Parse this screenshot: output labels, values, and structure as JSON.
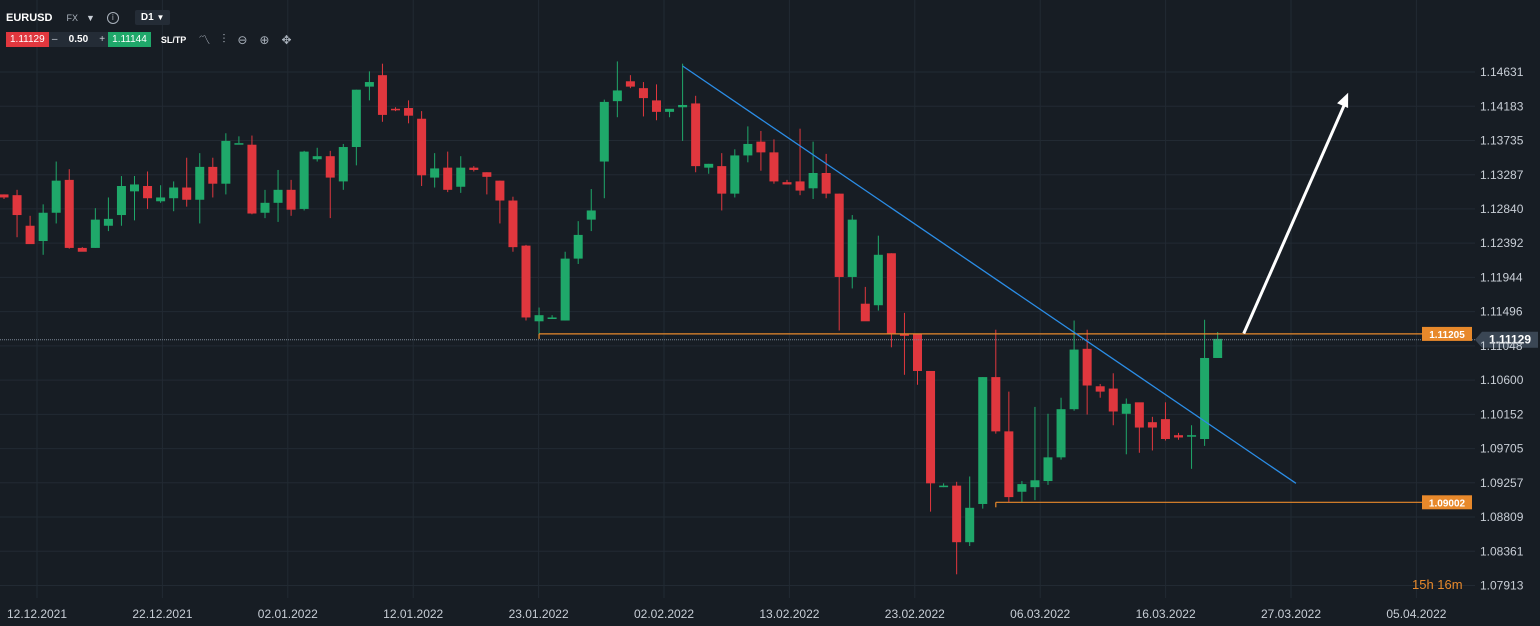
{
  "header": {
    "symbol": "EURUSD",
    "market": "FX",
    "timeframe": "D1",
    "sell_price": "1.11129",
    "quantity": "0.50",
    "buy_price": "1.11144",
    "sltp_label": "SL/TP",
    "minus_label": "–",
    "plus_label": "+",
    "tools": [
      "line-chart-icon",
      "candles-icon",
      "zoom-out-icon",
      "zoom-in-icon",
      "crosshair-icon"
    ]
  },
  "countdown": "15h 16m",
  "colors": {
    "background": "#171d24",
    "grid": "#222a33",
    "up": "#1fa86a",
    "down": "#e0373e",
    "trendline": "#2b8de6",
    "level": "#e8892b",
    "current_price_bg": "#3a4654",
    "arrow": "#ffffff"
  },
  "chart_data": {
    "type": "candlestick",
    "symbol": "EURUSD",
    "timeframe": "D1",
    "ylim": [
      1.0775,
      1.1505
    ],
    "y_ticks": [
      "1.14631",
      "1.14183",
      "1.13735",
      "1.13287",
      "1.12840",
      "1.12392",
      "1.11944",
      "1.11496",
      "1.11048",
      "1.10600",
      "1.10152",
      "1.09705",
      "1.09257",
      "1.08809",
      "1.08361",
      "1.07913"
    ],
    "x_ticks": [
      "12.12.2021",
      "22.12.2021",
      "02.01.2022",
      "12.01.2022",
      "23.01.2022",
      "02.02.2022",
      "13.02.2022",
      "23.02.2022",
      "06.03.2022",
      "16.03.2022",
      "27.03.2022",
      "05.04.2022"
    ],
    "current_price": "1.11129",
    "current_price_value": 1.11129,
    "levels": [
      {
        "label": "1.11205",
        "value": 1.11205,
        "from_index": 41
      },
      {
        "label": "1.09002",
        "value": 1.09002,
        "from_index": 76
      }
    ],
    "trendline": {
      "from": {
        "index": 52,
        "value": 1.1471
      },
      "to": {
        "index": 99,
        "value": 1.0925
      }
    },
    "forecast_arrow": {
      "from": {
        "index": 95,
        "value": 1.1121
      },
      "to": {
        "index": 103,
        "value": 1.1436
      }
    },
    "candles": [
      {
        "o": 1.1303,
        "h": 1.1303,
        "l": 1.1297,
        "c": 1.1299
      },
      {
        "o": 1.1302,
        "h": 1.1309,
        "l": 1.1247,
        "c": 1.1276
      },
      {
        "o": 1.1262,
        "h": 1.1275,
        "l": 1.1239,
        "c": 1.1238
      },
      {
        "o": 1.1242,
        "h": 1.129,
        "l": 1.1224,
        "c": 1.1279
      },
      {
        "o": 1.1279,
        "h": 1.1346,
        "l": 1.1265,
        "c": 1.1321
      },
      {
        "o": 1.1322,
        "h": 1.1336,
        "l": 1.1232,
        "c": 1.1233
      },
      {
        "o": 1.1233,
        "h": 1.1234,
        "l": 1.123,
        "c": 1.1228
      },
      {
        "o": 1.1233,
        "h": 1.1285,
        "l": 1.1233,
        "c": 1.127
      },
      {
        "o": 1.1262,
        "h": 1.1299,
        "l": 1.1255,
        "c": 1.1271
      },
      {
        "o": 1.1276,
        "h": 1.1327,
        "l": 1.1262,
        "c": 1.1314
      },
      {
        "o": 1.1307,
        "h": 1.1327,
        "l": 1.1269,
        "c": 1.1316
      },
      {
        "o": 1.1314,
        "h": 1.1333,
        "l": 1.1284,
        "c": 1.1298
      },
      {
        "o": 1.1294,
        "h": 1.1315,
        "l": 1.1292,
        "c": 1.1299
      },
      {
        "o": 1.1298,
        "h": 1.132,
        "l": 1.1281,
        "c": 1.1312
      },
      {
        "o": 1.1312,
        "h": 1.1351,
        "l": 1.1287,
        "c": 1.1296
      },
      {
        "o": 1.1296,
        "h": 1.1357,
        "l": 1.1265,
        "c": 1.1339
      },
      {
        "o": 1.1339,
        "h": 1.1351,
        "l": 1.1299,
        "c": 1.1317
      },
      {
        "o": 1.1317,
        "h": 1.1383,
        "l": 1.1303,
        "c": 1.1373
      },
      {
        "o": 1.137,
        "h": 1.1379,
        "l": 1.137,
        "c": 1.137
      },
      {
        "o": 1.1368,
        "h": 1.138,
        "l": 1.1277,
        "c": 1.1278
      },
      {
        "o": 1.1279,
        "h": 1.1309,
        "l": 1.1272,
        "c": 1.1292
      },
      {
        "o": 1.1292,
        "h": 1.1335,
        "l": 1.1267,
        "c": 1.1309
      },
      {
        "o": 1.1309,
        "h": 1.1322,
        "l": 1.1275,
        "c": 1.1283
      },
      {
        "o": 1.1284,
        "h": 1.136,
        "l": 1.1282,
        "c": 1.1359
      },
      {
        "o": 1.1349,
        "h": 1.1364,
        "l": 1.1346,
        "c": 1.1353
      },
      {
        "o": 1.1353,
        "h": 1.136,
        "l": 1.1272,
        "c": 1.1325
      },
      {
        "o": 1.132,
        "h": 1.1369,
        "l": 1.1309,
        "c": 1.1365
      },
      {
        "o": 1.1365,
        "h": 1.144,
        "l": 1.1341,
        "c": 1.144
      },
      {
        "o": 1.1444,
        "h": 1.1464,
        "l": 1.1426,
        "c": 1.145
      },
      {
        "o": 1.1459,
        "h": 1.1474,
        "l": 1.1398,
        "c": 1.1407
      },
      {
        "o": 1.1415,
        "h": 1.1417,
        "l": 1.1412,
        "c": 1.1413
      },
      {
        "o": 1.1416,
        "h": 1.1426,
        "l": 1.1396,
        "c": 1.1406
      },
      {
        "o": 1.1402,
        "h": 1.1412,
        "l": 1.1314,
        "c": 1.1328
      },
      {
        "o": 1.1325,
        "h": 1.1357,
        "l": 1.1312,
        "c": 1.1337
      },
      {
        "o": 1.1338,
        "h": 1.1359,
        "l": 1.1306,
        "c": 1.1309
      },
      {
        "o": 1.1313,
        "h": 1.1353,
        "l": 1.1305,
        "c": 1.1338
      },
      {
        "o": 1.1338,
        "h": 1.134,
        "l": 1.1333,
        "c": 1.1335
      },
      {
        "o": 1.1332,
        "h": 1.1332,
        "l": 1.1303,
        "c": 1.1326
      },
      {
        "o": 1.1321,
        "h": 1.1321,
        "l": 1.1265,
        "c": 1.1295
      },
      {
        "o": 1.1295,
        "h": 1.13,
        "l": 1.1228,
        "c": 1.1234
      },
      {
        "o": 1.1236,
        "h": 1.1237,
        "l": 1.1138,
        "c": 1.1142
      },
      {
        "o": 1.1137,
        "h": 1.1155,
        "l": 1.112,
        "c": 1.1145
      },
      {
        "o": 1.114,
        "h": 1.1145,
        "l": 1.114,
        "c": 1.1142
      },
      {
        "o": 1.1138,
        "h": 1.1228,
        "l": 1.1138,
        "c": 1.1219
      },
      {
        "o": 1.1219,
        "h": 1.1268,
        "l": 1.1212,
        "c": 1.125
      },
      {
        "o": 1.127,
        "h": 1.131,
        "l": 1.1255,
        "c": 1.1282
      },
      {
        "o": 1.1346,
        "h": 1.1427,
        "l": 1.1298,
        "c": 1.1424
      },
      {
        "o": 1.1425,
        "h": 1.1477,
        "l": 1.1404,
        "c": 1.1439
      },
      {
        "o": 1.1451,
        "h": 1.1459,
        "l": 1.1442,
        "c": 1.1444
      },
      {
        "o": 1.1442,
        "h": 1.145,
        "l": 1.1405,
        "c": 1.1429
      },
      {
        "o": 1.1426,
        "h": 1.1447,
        "l": 1.14,
        "c": 1.1411
      },
      {
        "o": 1.1411,
        "h": 1.1414,
        "l": 1.1404,
        "c": 1.1415
      },
      {
        "o": 1.1417,
        "h": 1.1474,
        "l": 1.1373,
        "c": 1.142
      },
      {
        "o": 1.1422,
        "h": 1.1432,
        "l": 1.1332,
        "c": 1.134
      },
      {
        "o": 1.1338,
        "h": 1.1343,
        "l": 1.133,
        "c": 1.1343
      },
      {
        "o": 1.134,
        "h": 1.1357,
        "l": 1.1282,
        "c": 1.1304
      },
      {
        "o": 1.1304,
        "h": 1.1362,
        "l": 1.1299,
        "c": 1.1354
      },
      {
        "o": 1.1354,
        "h": 1.1392,
        "l": 1.1345,
        "c": 1.1369
      },
      {
        "o": 1.1372,
        "h": 1.1386,
        "l": 1.1334,
        "c": 1.1358
      },
      {
        "o": 1.1358,
        "h": 1.1375,
        "l": 1.1317,
        "c": 1.132
      },
      {
        "o": 1.1319,
        "h": 1.1322,
        "l": 1.1316,
        "c": 1.1316
      },
      {
        "o": 1.132,
        "h": 1.1389,
        "l": 1.1302,
        "c": 1.1308
      },
      {
        "o": 1.1311,
        "h": 1.1372,
        "l": 1.1297,
        "c": 1.1331
      },
      {
        "o": 1.1331,
        "h": 1.1356,
        "l": 1.1298,
        "c": 1.1304
      },
      {
        "o": 1.1304,
        "h": 1.1304,
        "l": 1.1125,
        "c": 1.1195
      },
      {
        "o": 1.1195,
        "h": 1.1276,
        "l": 1.118,
        "c": 1.127
      },
      {
        "o": 1.116,
        "h": 1.1182,
        "l": 1.1141,
        "c": 1.1137
      },
      {
        "o": 1.1158,
        "h": 1.1249,
        "l": 1.1151,
        "c": 1.1224
      },
      {
        "o": 1.1226,
        "h": 1.1226,
        "l": 1.1103,
        "c": 1.112
      },
      {
        "o": 1.112,
        "h": 1.1148,
        "l": 1.1067,
        "c": 1.1118
      },
      {
        "o": 1.1121,
        "h": 1.1121,
        "l": 1.1054,
        "c": 1.1072
      },
      {
        "o": 1.1072,
        "h": 1.1072,
        "l": 1.0888,
        "c": 1.0925
      },
      {
        "o": 1.092,
        "h": 1.0925,
        "l": 1.092,
        "c": 1.0922
      },
      {
        "o": 1.0922,
        "h": 1.0927,
        "l": 1.0806,
        "c": 1.0848
      },
      {
        "o": 1.0848,
        "h": 1.0934,
        "l": 1.0843,
        "c": 1.0893
      },
      {
        "o": 1.0898,
        "h": 1.1064,
        "l": 1.0892,
        "c": 1.1064
      },
      {
        "o": 1.1064,
        "h": 1.1126,
        "l": 1.099,
        "c": 1.0993
      },
      {
        "o": 1.0993,
        "h": 1.1045,
        "l": 1.09,
        "c": 1.0907
      },
      {
        "o": 1.0914,
        "h": 1.0928,
        "l": 1.09,
        "c": 1.0924
      },
      {
        "o": 1.092,
        "h": 1.1025,
        "l": 1.0903,
        "c": 1.0929
      },
      {
        "o": 1.0928,
        "h": 1.1016,
        "l": 1.0923,
        "c": 1.0959
      },
      {
        "o": 1.0959,
        "h": 1.1037,
        "l": 1.0956,
        "c": 1.1022
      },
      {
        "o": 1.1022,
        "h": 1.1138,
        "l": 1.102,
        "c": 1.11
      },
      {
        "o": 1.1101,
        "h": 1.1126,
        "l": 1.1015,
        "c": 1.1053
      },
      {
        "o": 1.1052,
        "h": 1.1055,
        "l": 1.1037,
        "c": 1.1045
      },
      {
        "o": 1.1049,
        "h": 1.1069,
        "l": 1.1001,
        "c": 1.1019
      },
      {
        "o": 1.1016,
        "h": 1.1036,
        "l": 1.0963,
        "c": 1.1029
      },
      {
        "o": 1.1031,
        "h": 1.1029,
        "l": 1.0965,
        "c": 1.0998
      },
      {
        "o": 1.1005,
        "h": 1.1012,
        "l": 1.0968,
        "c": 1.0998
      },
      {
        "o": 1.1009,
        "h": 1.1031,
        "l": 1.0981,
        "c": 1.0983
      },
      {
        "o": 1.0988,
        "h": 1.0991,
        "l": 1.0982,
        "c": 1.0985
      },
      {
        "o": 1.0986,
        "h": 1.1001,
        "l": 1.0944,
        "c": 1.0988
      },
      {
        "o": 1.0983,
        "h": 1.1139,
        "l": 1.0974,
        "c": 1.1089
      },
      {
        "o": 1.1089,
        "h": 1.1123,
        "l": 1.1089,
        "c": 1.1114
      }
    ]
  }
}
